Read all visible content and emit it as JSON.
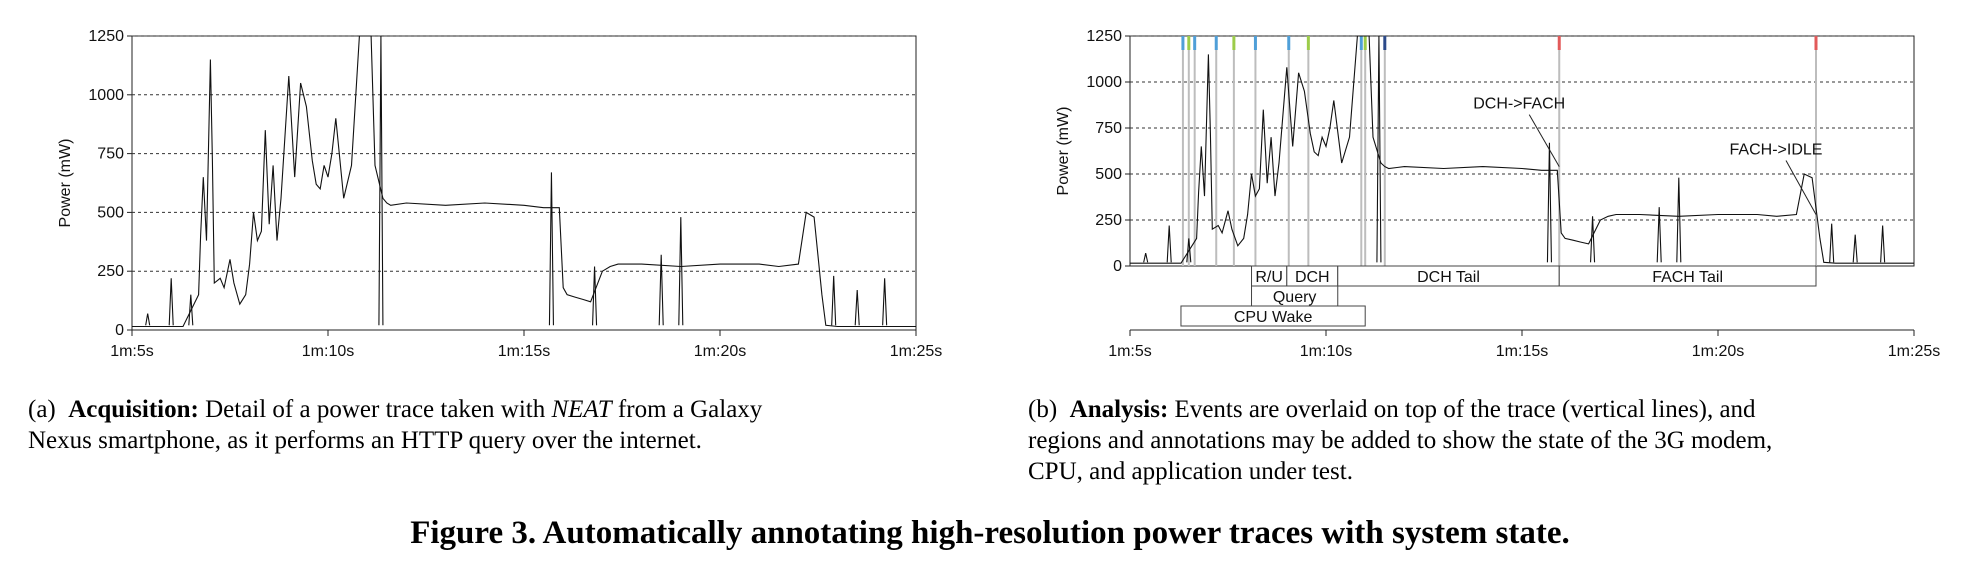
{
  "chart_data": [
    {
      "type": "line",
      "title": "",
      "xlabel": "",
      "ylabel": "Power (mW)",
      "ylim": [
        0,
        1250
      ],
      "xlim": [
        65,
        85
      ],
      "yticks": [
        0,
        250,
        500,
        750,
        1000,
        1250
      ],
      "ytick_labels": [
        "0",
        "250",
        "500",
        "750",
        "1000",
        "1250"
      ],
      "xticks": [
        65,
        70,
        75,
        80,
        85
      ],
      "xtick_labels": [
        "1m:5s",
        "1m:10s",
        "1m:15s",
        "1m:20s",
        "1m:25s"
      ],
      "grid": "horizontal-dashed",
      "x": [
        65,
        66.3,
        66.7,
        66.75,
        66.82,
        66.9,
        67.0,
        67.05,
        67.1,
        67.25,
        67.35,
        67.5,
        67.6,
        67.75,
        67.9,
        68.0,
        68.1,
        68.2,
        68.3,
        68.4,
        68.5,
        68.6,
        68.7,
        68.8,
        69.0,
        69.15,
        69.3,
        69.45,
        69.6,
        69.7,
        69.8,
        69.9,
        70.0,
        70.1,
        70.2,
        70.4,
        70.6,
        70.8,
        71.0,
        71.1,
        71.2,
        71.4,
        71.5,
        71.6,
        72.0,
        73.0,
        74.0,
        75.0,
        75.5,
        75.9,
        76.0,
        76.1,
        76.3,
        76.5,
        76.7,
        77.0,
        77.2,
        77.4,
        78.0,
        79.0,
        80.0,
        81.0,
        81.5,
        82.0,
        82.2,
        82.4,
        82.6,
        82.7,
        83.0,
        84.0,
        85
      ],
      "values": [
        15,
        15,
        150,
        400,
        650,
        380,
        1150,
        720,
        200,
        220,
        180,
        300,
        200,
        110,
        150,
        280,
        500,
        380,
        420,
        850,
        450,
        700,
        380,
        560,
        1080,
        650,
        1050,
        950,
        720,
        620,
        600,
        700,
        650,
        750,
        900,
        560,
        700,
        1250,
        1250,
        1250,
        700,
        560,
        540,
        530,
        540,
        530,
        540,
        530,
        520,
        520,
        180,
        150,
        140,
        130,
        120,
        250,
        270,
        280,
        280,
        270,
        280,
        280,
        270,
        280,
        500,
        480,
        150,
        20,
        15,
        15,
        15
      ],
      "spikes": [
        {
          "x": 65.4,
          "y": 70
        },
        {
          "x": 66.0,
          "y": 220
        },
        {
          "x": 66.5,
          "y": 150
        },
        {
          "x": 71.35,
          "y": 1250
        },
        {
          "x": 75.7,
          "y": 670
        },
        {
          "x": 76.8,
          "y": 270
        },
        {
          "x": 78.5,
          "y": 320
        },
        {
          "x": 79.0,
          "y": 480
        },
        {
          "x": 82.9,
          "y": 230
        },
        {
          "x": 83.5,
          "y": 170
        },
        {
          "x": 84.2,
          "y": 220
        }
      ]
    },
    {
      "type": "line",
      "title": "",
      "xlabel": "",
      "ylabel": "Power (mW)",
      "ylim": [
        0,
        1250
      ],
      "xlim": [
        65,
        85
      ],
      "yticks": [
        0,
        250,
        500,
        750,
        1000,
        1250
      ],
      "ytick_labels": [
        "0",
        "250",
        "500",
        "750",
        "1000",
        "1250"
      ],
      "xticks": [
        65,
        70,
        75,
        80,
        85
      ],
      "xtick_labels": [
        "1m:5s",
        "1m:10s",
        "1m:15s",
        "1m:20s",
        "1m:25s"
      ],
      "grid": "horizontal-dashed",
      "x": [
        65,
        66.3,
        66.7,
        66.75,
        66.82,
        66.9,
        67.0,
        67.05,
        67.1,
        67.25,
        67.35,
        67.5,
        67.6,
        67.75,
        67.9,
        68.0,
        68.1,
        68.2,
        68.3,
        68.4,
        68.5,
        68.6,
        68.7,
        68.8,
        69.0,
        69.15,
        69.3,
        69.45,
        69.6,
        69.7,
        69.8,
        69.9,
        70.0,
        70.1,
        70.2,
        70.4,
        70.6,
        70.8,
        71.0,
        71.1,
        71.2,
        71.4,
        71.5,
        71.6,
        72.0,
        73.0,
        74.0,
        75.0,
        75.5,
        75.9,
        76.0,
        76.1,
        76.3,
        76.5,
        76.7,
        77.0,
        77.2,
        77.4,
        78.0,
        79.0,
        80.0,
        81.0,
        81.5,
        82.0,
        82.2,
        82.4,
        82.6,
        82.7,
        83.0,
        84.0,
        85
      ],
      "values": [
        15,
        15,
        150,
        400,
        650,
        380,
        1150,
        720,
        200,
        220,
        180,
        300,
        200,
        110,
        150,
        280,
        500,
        380,
        420,
        850,
        450,
        700,
        380,
        560,
        1080,
        650,
        1050,
        950,
        720,
        620,
        600,
        700,
        650,
        750,
        900,
        560,
        700,
        1250,
        1250,
        1250,
        700,
        560,
        540,
        530,
        540,
        530,
        540,
        530,
        520,
        520,
        180,
        150,
        140,
        130,
        120,
        250,
        270,
        280,
        280,
        270,
        280,
        280,
        270,
        280,
        500,
        480,
        150,
        20,
        15,
        15,
        15
      ],
      "spikes": [
        {
          "x": 65.4,
          "y": 70
        },
        {
          "x": 66.0,
          "y": 220
        },
        {
          "x": 66.5,
          "y": 150
        },
        {
          "x": 71.35,
          "y": 1250
        },
        {
          "x": 75.7,
          "y": 670
        },
        {
          "x": 76.8,
          "y": 270
        },
        {
          "x": 78.5,
          "y": 320
        },
        {
          "x": 79.0,
          "y": 480
        },
        {
          "x": 82.9,
          "y": 230
        },
        {
          "x": 83.5,
          "y": 170
        },
        {
          "x": 84.2,
          "y": 220
        }
      ],
      "events": [
        {
          "x": 66.35,
          "color": "#4f9fd8"
        },
        {
          "x": 66.5,
          "color": "#9ccc4a"
        },
        {
          "x": 66.65,
          "color": "#4f9fd8"
        },
        {
          "x": 67.2,
          "color": "#4f9fd8"
        },
        {
          "x": 67.65,
          "color": "#9ccc4a"
        },
        {
          "x": 68.2,
          "color": "#4f9fd8"
        },
        {
          "x": 69.05,
          "color": "#4f9fd8"
        },
        {
          "x": 69.55,
          "color": "#9ccc4a"
        },
        {
          "x": 70.9,
          "color": "#4f9fd8"
        },
        {
          "x": 71.0,
          "color": "#9ccc4a"
        },
        {
          "x": 71.5,
          "color": "#2c4a8a"
        },
        {
          "x": 75.95,
          "color": "#e25a5a"
        },
        {
          "x": 82.5,
          "color": "#e25a5a"
        }
      ],
      "regions": [
        {
          "row": 0,
          "x0": 68.1,
          "x1": 69.0,
          "label": "R/U"
        },
        {
          "row": 0,
          "x0": 69.0,
          "x1": 70.3,
          "label": "DCH"
        },
        {
          "row": 0,
          "x0": 70.3,
          "x1": 75.95,
          "label": "DCH Tail"
        },
        {
          "row": 0,
          "x0": 75.95,
          "x1": 82.5,
          "label": "FACH Tail"
        },
        {
          "row": 1,
          "x0": 68.1,
          "x1": 70.3,
          "label": "Query"
        },
        {
          "row": 2,
          "x0": 66.3,
          "x1": 71.0,
          "label": "CPU Wake"
        }
      ],
      "annotations": [
        {
          "text": "DCH->FACH",
          "x": 75.95,
          "y": 540
        },
        {
          "text": "FACH->IDLE",
          "x": 82.5,
          "y": 280
        }
      ]
    }
  ],
  "captions": {
    "a": {
      "prefix": "(a)",
      "bold": "Acquisition:",
      "pre": "Detail of a power trace taken with",
      "em": "NEAT",
      "line1_end": "from a Galaxy",
      "line2": "Nexus smartphone, as it performs an HTTP query over the internet."
    },
    "b": {
      "prefix": "(b)",
      "bold": "Analysis:",
      "line1": "Events are overlaid on top of the trace (vertical lines), and",
      "line2": "regions and annotations may be added to show the state of the 3G modem,",
      "line3": "CPU, and application under test."
    }
  },
  "figure_title": "Figure 3. Automatically annotating high-resolution power traces with system state."
}
